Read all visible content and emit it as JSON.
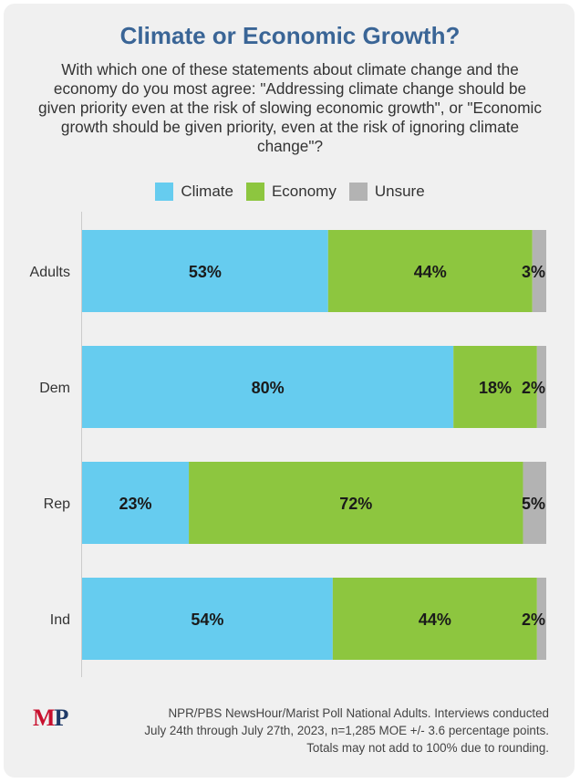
{
  "title": "Climate or Economic Growth?",
  "subtitle": "With which one of these statements about climate change and the economy do you most agree: \"Addressing climate change should be given priority even at the risk of slowing economic growth\", or \"Economic growth should be given priority, even at the risk of ignoring climate change\"?",
  "logo": {
    "m": "M",
    "p": "P"
  },
  "footer": {
    "line1": "NPR/PBS NewsHour/Marist Poll National Adults. Interviews conducted",
    "line2": "July 24th through July 27th, 2023, n=1,285 MOE +/- 3.6 percentage points.",
    "line3": "Totals may not add to 100% due to rounding."
  },
  "colors": {
    "climate": "#66ccef",
    "economy": "#8dc63f",
    "unsure": "#b3b3b3",
    "title": "#3a6596"
  },
  "chart_data": {
    "type": "bar",
    "orientation": "horizontal",
    "stacked": true,
    "categories": [
      "Adults",
      "Dem",
      "Rep",
      "Ind"
    ],
    "series": [
      {
        "name": "Climate",
        "values": [
          53,
          80,
          23,
          54
        ]
      },
      {
        "name": "Economy",
        "values": [
          44,
          18,
          72,
          44
        ]
      },
      {
        "name": "Unsure",
        "values": [
          3,
          2,
          5,
          2
        ]
      }
    ],
    "data_labels": [
      [
        "53%",
        "44%",
        "3%"
      ],
      [
        "80%",
        "18%",
        "2%"
      ],
      [
        "23%",
        "72%",
        "5%"
      ],
      [
        "54%",
        "44%",
        "2%"
      ]
    ],
    "legend_position": "top",
    "xlim": [
      0,
      100
    ]
  }
}
